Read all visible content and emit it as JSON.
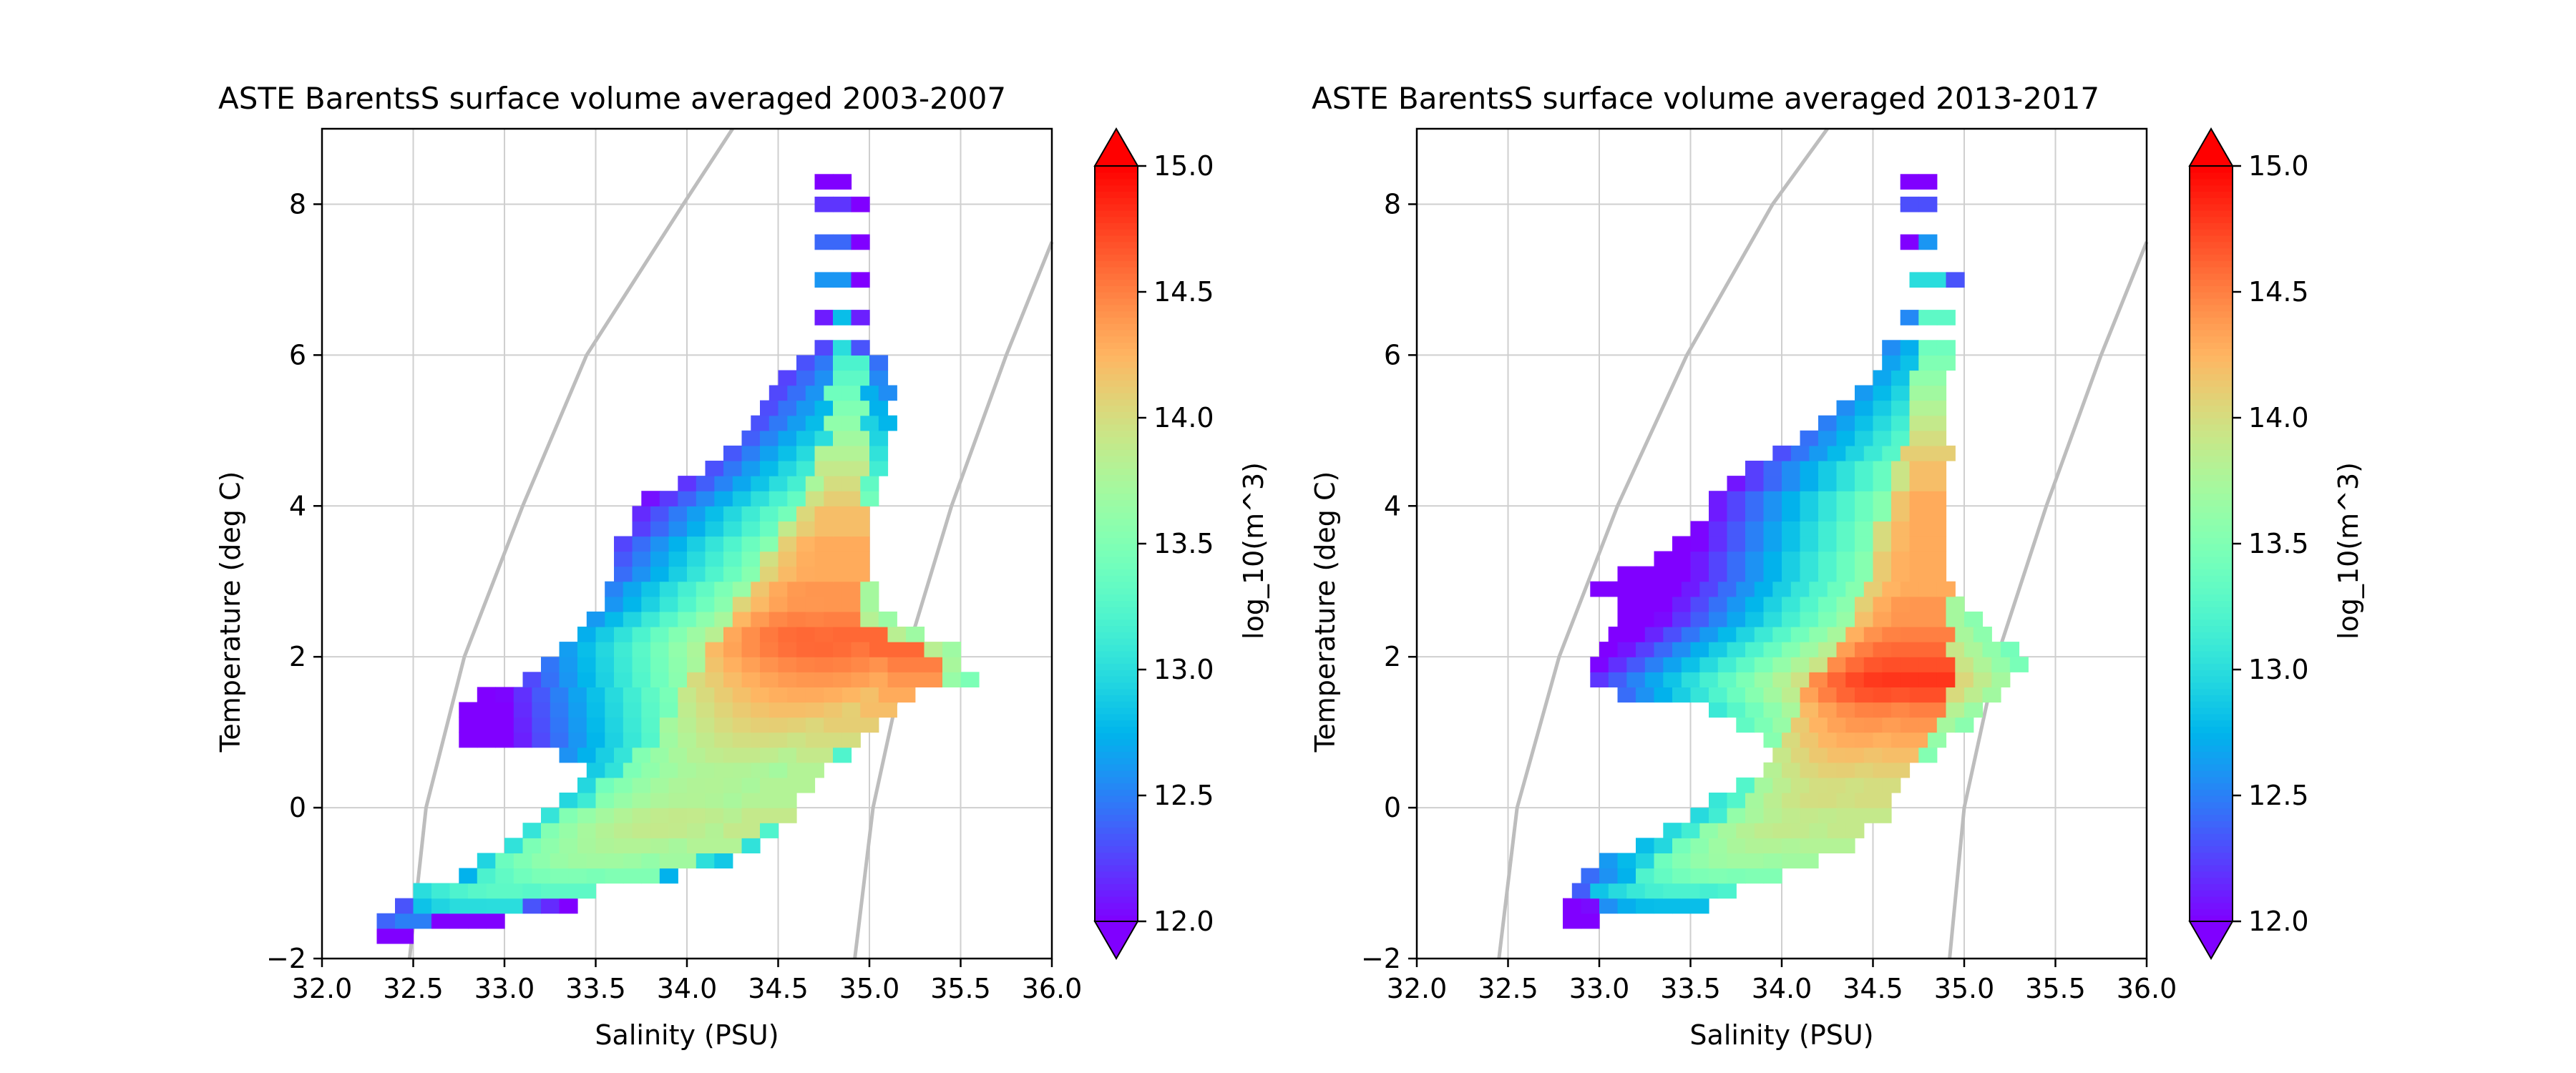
{
  "colors": {
    "grid": "#cfcfcf",
    "density_contours": "#bdbdbd",
    "axes": "#000000",
    "colormap": "rainbow"
  },
  "chart_data": [
    {
      "type": "heatmap",
      "title": "ASTE BarentsS surface volume averaged 2003-2007",
      "xlabel": "Salinity (PSU)",
      "ylabel": "Temperature (deg C)",
      "xlim": [
        32.0,
        36.0
      ],
      "ylim": [
        -2,
        9
      ],
      "xticks": [
        "32.0",
        "32.5",
        "33.0",
        "33.5",
        "34.0",
        "34.5",
        "35.0",
        "35.5",
        "36.0"
      ],
      "yticks": [
        "−2",
        "0",
        "2",
        "4",
        "6",
        "8"
      ],
      "grid": true,
      "colorbar": {
        "label": "log_10(m^3)",
        "min": 12.0,
        "max": 15.0,
        "ticks": [
          "12.0",
          "12.5",
          "13.0",
          "13.5",
          "14.0",
          "14.5",
          "15.0"
        ],
        "extend": "both"
      },
      "contours_s_at": [
        [
          -2,
          32.48
        ],
        [
          0,
          32.57
        ],
        [
          2,
          32.78
        ],
        [
          4,
          33.1
        ],
        [
          6,
          33.45
        ],
        [
          8,
          33.98
        ],
        [
          9,
          34.25
        ]
      ],
      "contours_s_at_2": [
        [
          -2,
          34.92
        ],
        [
          0,
          35.02
        ],
        [
          2,
          35.2
        ],
        [
          4,
          35.45
        ],
        [
          6,
          35.75
        ],
        [
          7.5,
          36.0
        ]
      ],
      "profile": [
        [
          -1.7,
          32.35,
          32.45,
          12.0
        ],
        [
          -1.5,
          32.3,
          32.5,
          12.5
        ],
        [
          -1.3,
          32.45,
          33.05,
          13.0
        ],
        [
          -1.1,
          32.5,
          33.4,
          13.3
        ],
        [
          -0.9,
          32.85,
          33.75,
          13.5
        ],
        [
          -0.7,
          32.95,
          34.0,
          13.7
        ],
        [
          -0.5,
          33.1,
          34.2,
          13.8
        ],
        [
          -0.3,
          33.25,
          34.35,
          13.9
        ],
        [
          -0.1,
          33.35,
          34.5,
          13.9
        ],
        [
          0.1,
          33.45,
          34.5,
          13.8
        ],
        [
          0.3,
          33.55,
          34.6,
          13.8
        ],
        [
          0.5,
          33.65,
          34.7,
          13.8
        ],
        [
          0.7,
          33.75,
          34.75,
          13.9
        ],
        [
          0.9,
          33.85,
          34.85,
          14.0
        ],
        [
          1.1,
          33.9,
          34.95,
          14.1
        ],
        [
          1.3,
          33.95,
          35.1,
          14.2
        ],
        [
          1.5,
          34.0,
          35.2,
          14.3
        ],
        [
          1.7,
          34.05,
          35.3,
          14.4
        ],
        [
          1.9,
          34.1,
          35.3,
          14.5
        ],
        [
          2.1,
          34.15,
          35.2,
          14.6
        ],
        [
          2.3,
          34.2,
          35.0,
          14.6
        ],
        [
          2.5,
          34.25,
          34.9,
          14.5
        ],
        [
          2.7,
          34.3,
          34.9,
          14.4
        ],
        [
          2.9,
          34.35,
          34.9,
          14.4
        ],
        [
          3.1,
          34.4,
          34.9,
          14.3
        ],
        [
          3.3,
          34.45,
          34.9,
          14.3
        ],
        [
          3.5,
          34.5,
          34.9,
          14.3
        ],
        [
          3.7,
          34.55,
          34.9,
          14.2
        ],
        [
          3.9,
          34.6,
          34.9,
          14.2
        ],
        [
          4.1,
          34.65,
          34.9,
          14.1
        ],
        [
          4.3,
          34.7,
          34.9,
          14.0
        ],
        [
          4.5,
          34.72,
          34.9,
          13.9
        ],
        [
          4.7,
          34.74,
          34.9,
          13.8
        ],
        [
          4.9,
          34.76,
          34.9,
          13.7
        ],
        [
          5.1,
          34.78,
          34.9,
          13.6
        ],
        [
          5.3,
          34.78,
          34.9,
          13.5
        ],
        [
          5.5,
          34.78,
          34.9,
          13.4
        ],
        [
          5.7,
          34.78,
          34.9,
          13.3
        ],
        [
          5.9,
          34.78,
          34.9,
          13.2
        ],
        [
          6.1,
          34.78,
          34.85,
          13.0
        ],
        [
          6.5,
          34.76,
          34.85,
          12.8
        ],
        [
          7.0,
          34.75,
          34.8,
          12.6
        ],
        [
          7.5,
          34.75,
          34.8,
          12.4
        ],
        [
          8.0,
          34.75,
          34.8,
          12.2
        ],
        [
          8.3,
          34.75,
          34.8,
          12.0
        ]
      ],
      "outline": [
        [
          -1.7,
          32.3,
          32.45
        ],
        [
          -1.5,
          32.3,
          32.9
        ],
        [
          -1.3,
          32.4,
          33.3
        ],
        [
          -1.1,
          32.5,
          33.45
        ],
        [
          -0.9,
          32.75,
          33.9
        ],
        [
          -0.7,
          32.85,
          34.15
        ],
        [
          -0.5,
          33.0,
          34.3
        ],
        [
          -0.3,
          33.1,
          34.45
        ],
        [
          -0.1,
          33.2,
          34.55
        ],
        [
          0.1,
          33.3,
          34.55
        ],
        [
          0.3,
          33.4,
          34.6
        ],
        [
          0.5,
          33.45,
          34.7
        ],
        [
          0.7,
          33.3,
          34.8
        ],
        [
          0.9,
          32.75,
          34.9
        ],
        [
          1.1,
          32.75,
          35.0
        ],
        [
          1.3,
          32.75,
          35.1
        ],
        [
          1.5,
          32.85,
          35.15
        ],
        [
          1.7,
          33.1,
          35.5
        ],
        [
          1.9,
          33.2,
          35.4
        ],
        [
          2.1,
          33.3,
          35.4
        ],
        [
          2.3,
          33.4,
          35.2
        ],
        [
          2.5,
          33.45,
          35.1
        ],
        [
          2.7,
          33.55,
          35.0
        ],
        [
          2.9,
          33.55,
          34.95
        ],
        [
          3.1,
          33.6,
          34.95
        ],
        [
          3.3,
          33.6,
          34.95
        ],
        [
          3.5,
          33.6,
          34.95
        ],
        [
          3.7,
          33.7,
          34.95
        ],
        [
          3.9,
          33.7,
          34.95
        ],
        [
          4.1,
          33.75,
          34.95
        ],
        [
          4.3,
          33.95,
          35.0
        ],
        [
          4.5,
          34.1,
          35.05
        ],
        [
          4.7,
          34.2,
          35.05
        ],
        [
          4.9,
          34.3,
          35.05
        ],
        [
          5.1,
          34.35,
          35.05
        ],
        [
          5.3,
          34.4,
          35.05
        ],
        [
          5.5,
          34.45,
          35.05
        ],
        [
          5.7,
          34.5,
          35.05
        ],
        [
          5.9,
          34.6,
          35.05
        ],
        [
          6.1,
          34.7,
          34.95
        ],
        [
          6.5,
          34.7,
          34.95
        ],
        [
          7.0,
          34.7,
          34.9
        ],
        [
          7.5,
          34.7,
          34.9
        ],
        [
          8.0,
          34.7,
          34.9
        ],
        [
          8.3,
          34.7,
          34.8
        ]
      ]
    },
    {
      "type": "heatmap",
      "title": "ASTE BarentsS surface volume averaged 2013-2017",
      "xlabel": "Salinity (PSU)",
      "ylabel": "Temperature (deg C)",
      "xlim": [
        32.0,
        36.0
      ],
      "ylim": [
        -2,
        9
      ],
      "xticks": [
        "32.0",
        "32.5",
        "33.0",
        "33.5",
        "34.0",
        "34.5",
        "35.0",
        "35.5",
        "36.0"
      ],
      "yticks": [
        "−2",
        "0",
        "2",
        "4",
        "6",
        "8"
      ],
      "grid": true,
      "colorbar": {
        "label": "log_10(m^3)",
        "min": 12.0,
        "max": 15.0,
        "ticks": [
          "12.0",
          "12.5",
          "13.0",
          "13.5",
          "14.0",
          "14.5",
          "15.0"
        ],
        "extend": "both"
      },
      "contours_s_at": [
        [
          -2,
          32.45
        ],
        [
          0,
          32.55
        ],
        [
          2,
          32.78
        ],
        [
          4,
          33.1
        ],
        [
          6,
          33.48
        ],
        [
          8,
          33.95
        ],
        [
          9,
          34.25
        ]
      ],
      "contours_s_at_2": [
        [
          -2,
          34.92
        ],
        [
          0,
          35.0
        ],
        [
          2,
          35.18
        ],
        [
          4,
          35.45
        ],
        [
          6,
          35.75
        ],
        [
          7.5,
          36.0
        ]
      ],
      "profile": [
        [
          -1.5,
          32.8,
          32.9,
          12.0
        ],
        [
          -1.3,
          33.0,
          33.5,
          12.8
        ],
        [
          -1.1,
          33.0,
          33.8,
          13.2
        ],
        [
          -0.9,
          33.2,
          34.0,
          13.5
        ],
        [
          -0.7,
          33.3,
          34.2,
          13.7
        ],
        [
          -0.5,
          33.45,
          34.3,
          13.8
        ],
        [
          -0.3,
          33.55,
          34.4,
          13.9
        ],
        [
          -0.1,
          33.7,
          34.5,
          13.9
        ],
        [
          0.1,
          33.8,
          34.55,
          14.0
        ],
        [
          0.3,
          33.85,
          34.6,
          14.0
        ],
        [
          0.5,
          33.9,
          34.65,
          14.1
        ],
        [
          0.7,
          33.95,
          34.7,
          14.2
        ],
        [
          0.9,
          34.0,
          34.75,
          14.3
        ],
        [
          1.1,
          34.05,
          34.8,
          14.4
        ],
        [
          1.3,
          34.1,
          34.85,
          14.5
        ],
        [
          1.5,
          34.15,
          34.85,
          14.7
        ],
        [
          1.7,
          34.2,
          34.85,
          14.8
        ],
        [
          1.9,
          34.25,
          34.85,
          14.7
        ],
        [
          2.1,
          34.3,
          34.85,
          14.6
        ],
        [
          2.3,
          34.35,
          34.85,
          14.5
        ],
        [
          2.5,
          34.4,
          34.85,
          14.4
        ],
        [
          2.7,
          34.45,
          34.85,
          14.4
        ],
        [
          2.9,
          34.45,
          34.85,
          14.3
        ],
        [
          3.1,
          34.5,
          34.85,
          14.3
        ],
        [
          3.3,
          34.5,
          34.85,
          14.3
        ],
        [
          3.5,
          34.55,
          34.85,
          14.3
        ],
        [
          3.7,
          34.55,
          34.85,
          14.3
        ],
        [
          3.9,
          34.6,
          34.85,
          14.3
        ],
        [
          4.1,
          34.6,
          34.85,
          14.3
        ],
        [
          4.3,
          34.65,
          34.85,
          14.2
        ],
        [
          4.5,
          34.65,
          34.85,
          14.2
        ],
        [
          4.7,
          34.7,
          34.85,
          14.1
        ],
        [
          4.9,
          34.7,
          34.85,
          14.0
        ],
        [
          5.1,
          34.7,
          34.85,
          13.9
        ],
        [
          5.3,
          34.7,
          34.85,
          13.8
        ],
        [
          5.5,
          34.7,
          34.85,
          13.7
        ],
        [
          5.7,
          34.7,
          34.85,
          13.6
        ],
        [
          5.9,
          34.7,
          34.85,
          13.5
        ],
        [
          6.1,
          34.7,
          34.85,
          13.4
        ],
        [
          6.5,
          34.75,
          34.85,
          13.3
        ],
        [
          7.0,
          34.75,
          34.85,
          13.0
        ],
        [
          7.5,
          34.7,
          34.8,
          12.6
        ],
        [
          8.0,
          34.65,
          34.75,
          12.3
        ],
        [
          8.3,
          34.65,
          34.75,
          12.0
        ]
      ],
      "outline": [
        [
          -1.5,
          32.8,
          32.95
        ],
        [
          -1.3,
          32.8,
          33.5
        ],
        [
          -1.1,
          32.85,
          33.7
        ],
        [
          -0.9,
          32.9,
          33.95
        ],
        [
          -0.7,
          33.0,
          34.1
        ],
        [
          -0.5,
          33.2,
          34.3
        ],
        [
          -0.3,
          33.35,
          34.4
        ],
        [
          -0.1,
          33.5,
          34.5
        ],
        [
          0.1,
          33.6,
          34.55
        ],
        [
          0.3,
          33.75,
          34.6
        ],
        [
          0.5,
          33.9,
          34.65
        ],
        [
          0.7,
          33.95,
          34.75
        ],
        [
          0.9,
          33.9,
          34.85
        ],
        [
          1.1,
          33.75,
          34.95
        ],
        [
          1.3,
          33.6,
          35.0
        ],
        [
          1.5,
          33.1,
          35.1
        ],
        [
          1.7,
          32.95,
          35.2
        ],
        [
          1.9,
          32.95,
          35.25
        ],
        [
          2.1,
          33.0,
          35.2
        ],
        [
          2.3,
          33.05,
          35.05
        ],
        [
          2.5,
          33.1,
          35.0
        ],
        [
          2.7,
          33.1,
          34.95
        ],
        [
          2.9,
          32.95,
          34.85
        ],
        [
          3.1,
          33.1,
          34.85
        ],
        [
          3.3,
          33.3,
          34.85
        ],
        [
          3.5,
          33.4,
          34.85
        ],
        [
          3.7,
          33.5,
          34.85
        ],
        [
          3.9,
          33.6,
          34.85
        ],
        [
          4.1,
          33.6,
          34.85
        ],
        [
          4.3,
          33.7,
          34.85
        ],
        [
          4.5,
          33.8,
          34.85
        ],
        [
          4.7,
          33.95,
          34.85
        ],
        [
          4.9,
          34.1,
          34.85
        ],
        [
          5.1,
          34.2,
          34.85
        ],
        [
          5.3,
          34.3,
          34.85
        ],
        [
          5.5,
          34.4,
          34.85
        ],
        [
          5.7,
          34.5,
          34.85
        ],
        [
          5.9,
          34.55,
          34.85
        ],
        [
          6.1,
          34.55,
          34.85
        ],
        [
          6.5,
          34.65,
          34.85
        ],
        [
          7.0,
          34.7,
          34.9
        ],
        [
          7.5,
          34.65,
          34.8
        ],
        [
          8.0,
          34.65,
          34.75
        ],
        [
          8.3,
          34.65,
          34.75
        ]
      ]
    }
  ]
}
